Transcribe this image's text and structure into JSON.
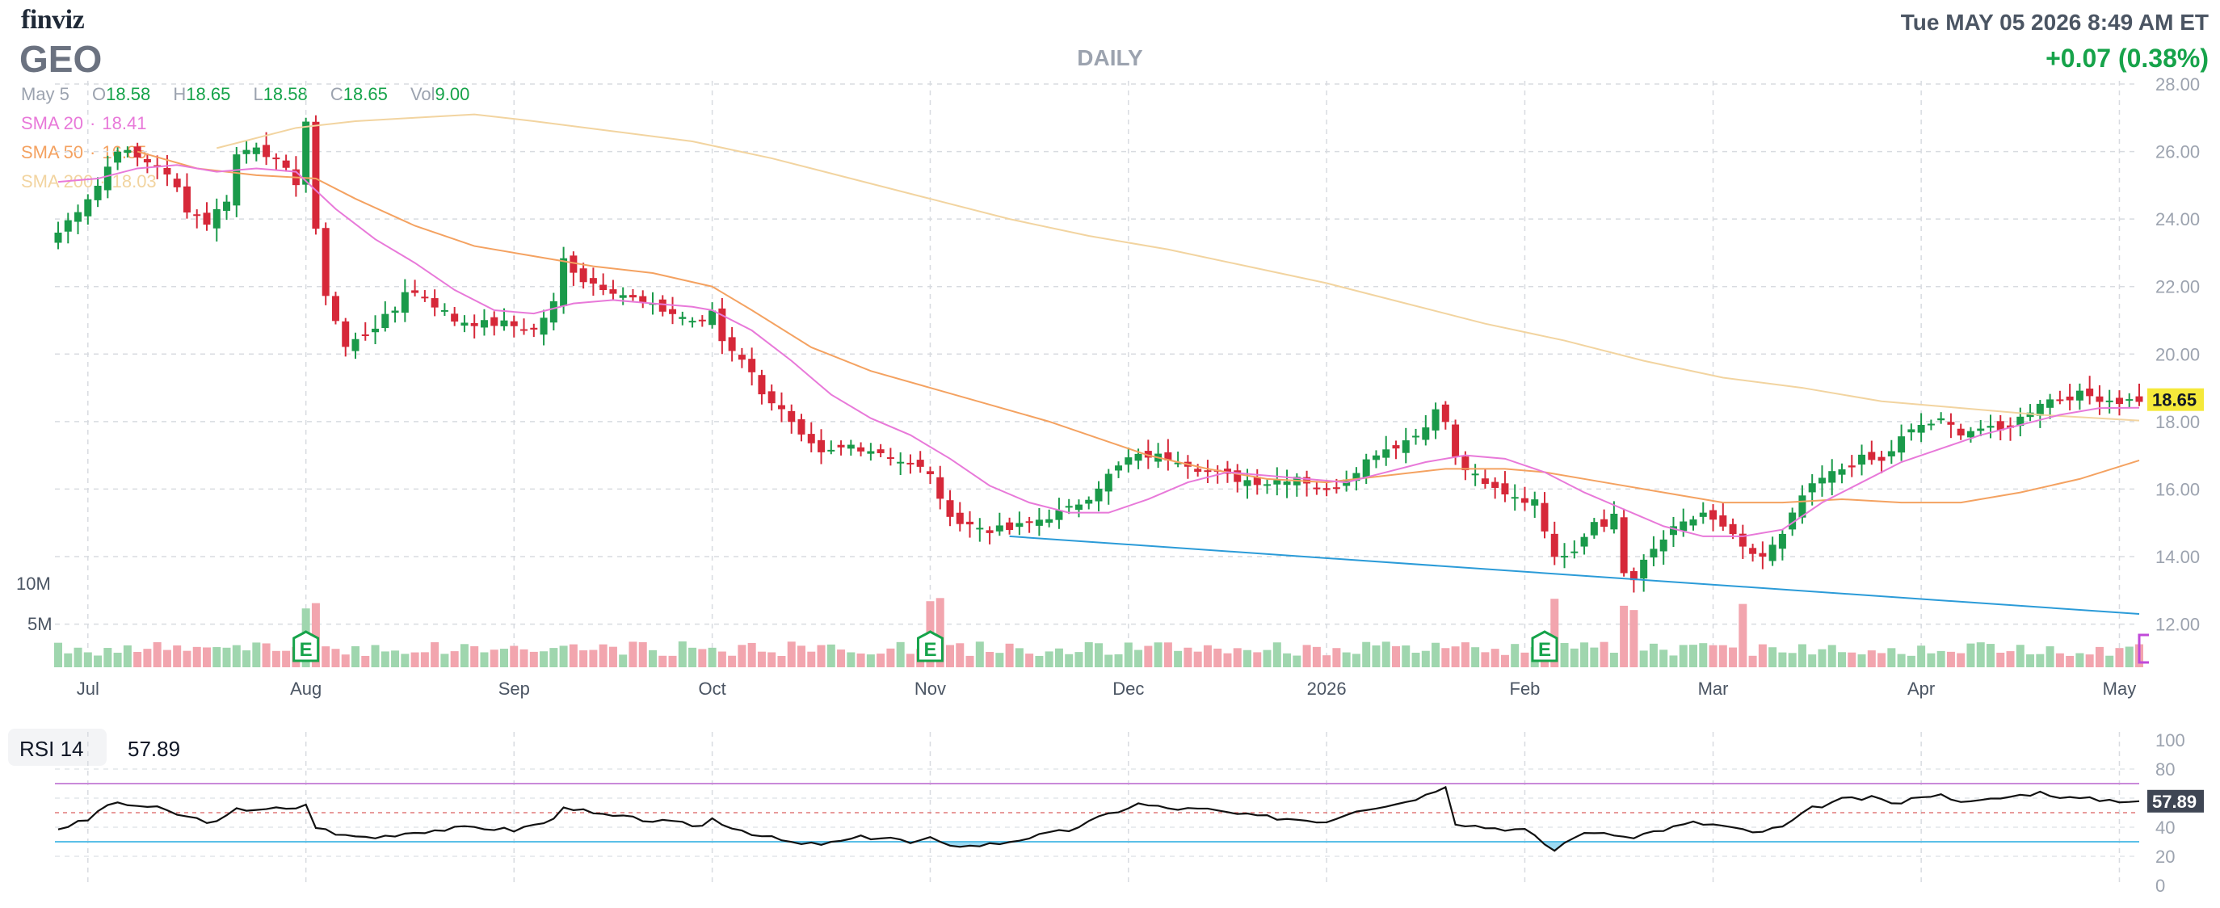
{
  "header": {
    "logo": "finviz",
    "ticker": "GEO",
    "timeframe": "DAILY",
    "datetime": "Tue MAY 05 2026 8:49 AM ET",
    "change": "+0.07 (0.38%)"
  },
  "ohlc": {
    "date": "May 5",
    "open_label": "O",
    "open": "18.58",
    "high_label": "H",
    "high": "18.65",
    "low_label": "L",
    "low": "18.58",
    "close_label": "C",
    "close": "18.65",
    "vol_label": "Vol",
    "vol": "9.00"
  },
  "indicators": {
    "sma20_label": "SMA 20",
    "sma20_value": "18.41",
    "sma50_label": "SMA 50",
    "sma50_value": "16.85",
    "sma200_label": "SMA 200",
    "sma200_value": "18.03"
  },
  "rsi": {
    "label": "RSI 14",
    "value": "57.89"
  },
  "colors": {
    "up": "#1a9a4a",
    "down": "#d62839",
    "up_volume": "#9fd6ae",
    "down_volume": "#f2a5ae",
    "sma20": "#e879d9",
    "sma50": "#f4a261",
    "sma200": "#f2d4a0",
    "trendline": "#2b9bd8",
    "rsi_line": "#111111",
    "rsi_overbought": "#c98ad9",
    "rsi_oversold": "#5bc0e8"
  },
  "chart_data": [
    {
      "type": "candlestick",
      "ylim": [
        11.2,
        28.0
      ],
      "y_ticks": [
        "28.00",
        "26.00",
        "24.00",
        "22.00",
        "20.00",
        "18.00",
        "16.00",
        "14.00",
        "12.00"
      ],
      "last_price_label": "18.65",
      "x_ticks": [
        {
          "label": "Jul",
          "index": 3
        },
        {
          "label": "Aug",
          "index": 25
        },
        {
          "label": "Sep",
          "index": 46
        },
        {
          "label": "Oct",
          "index": 66
        },
        {
          "label": "Nov",
          "index": 88
        },
        {
          "label": "Dec",
          "index": 108
        },
        {
          "label": "2026",
          "index": 128
        },
        {
          "label": "Feb",
          "index": 148
        },
        {
          "label": "Mar",
          "index": 167
        },
        {
          "label": "Apr",
          "index": 188
        },
        {
          "label": "May",
          "index": 208
        }
      ],
      "volume_ticks": [
        "10M",
        "5M"
      ],
      "earnings_markers": [
        {
          "label": "E",
          "index": 25
        },
        {
          "label": "E",
          "index": 88
        },
        {
          "label": "E",
          "index": 150
        }
      ],
      "keypoints": [
        [
          0,
          23.6
        ],
        [
          2,
          24.3
        ],
        [
          4,
          25.0
        ],
        [
          6,
          26.1
        ],
        [
          8,
          25.8
        ],
        [
          10,
          25.6
        ],
        [
          12,
          24.9
        ],
        [
          13,
          24.3
        ],
        [
          15,
          23.9
        ],
        [
          17,
          24.6
        ],
        [
          18,
          25.9
        ],
        [
          20,
          26.2
        ],
        [
          22,
          25.7
        ],
        [
          24,
          25.1
        ],
        [
          25,
          26.9
        ],
        [
          26,
          23.6
        ],
        [
          27,
          21.8
        ],
        [
          29,
          20.2
        ],
        [
          31,
          20.6
        ],
        [
          34,
          21.3
        ],
        [
          35,
          21.9
        ],
        [
          37,
          21.7
        ],
        [
          40,
          21.0
        ],
        [
          43,
          20.9
        ],
        [
          45,
          20.9
        ],
        [
          48,
          20.7
        ],
        [
          50,
          21.5
        ],
        [
          51,
          22.8
        ],
        [
          53,
          22.2
        ],
        [
          56,
          21.9
        ],
        [
          59,
          21.5
        ],
        [
          61,
          21.3
        ],
        [
          63,
          21.1
        ],
        [
          65,
          20.9
        ],
        [
          66,
          21.3
        ],
        [
          67,
          20.4
        ],
        [
          69,
          19.9
        ],
        [
          71,
          18.9
        ],
        [
          73,
          18.3
        ],
        [
          75,
          17.5
        ],
        [
          77,
          17.0
        ],
        [
          80,
          17.3
        ],
        [
          83,
          17.1
        ],
        [
          86,
          16.7
        ],
        [
          88,
          16.5
        ],
        [
          89,
          15.6
        ],
        [
          91,
          15.0
        ],
        [
          94,
          14.8
        ],
        [
          96,
          14.8
        ],
        [
          98,
          15.0
        ],
        [
          100,
          15.2
        ],
        [
          102,
          15.4
        ],
        [
          104,
          15.8
        ],
        [
          106,
          16.4
        ],
        [
          108,
          16.9
        ],
        [
          110,
          17.0
        ],
        [
          113,
          16.9
        ],
        [
          116,
          16.5
        ],
        [
          119,
          16.3
        ],
        [
          122,
          16.2
        ],
        [
          125,
          16.4
        ],
        [
          128,
          15.9
        ],
        [
          131,
          16.6
        ],
        [
          133,
          17.1
        ],
        [
          135,
          17.3
        ],
        [
          137,
          17.6
        ],
        [
          139,
          18.3
        ],
        [
          140,
          18.0
        ],
        [
          141,
          16.9
        ],
        [
          142,
          16.6
        ],
        [
          144,
          16.1
        ],
        [
          147,
          15.8
        ],
        [
          149,
          15.6
        ],
        [
          151,
          14.1
        ],
        [
          152,
          14.1
        ],
        [
          153,
          14.2
        ],
        [
          154,
          14.7
        ],
        [
          155,
          15.0
        ],
        [
          156,
          14.9
        ],
        [
          157,
          15.3
        ],
        [
          158,
          13.5
        ],
        [
          159,
          13.2
        ],
        [
          160,
          13.9
        ],
        [
          162,
          14.6
        ],
        [
          164,
          15.0
        ],
        [
          166,
          15.2
        ],
        [
          168,
          14.9
        ],
        [
          170,
          14.2
        ],
        [
          172,
          14.0
        ],
        [
          174,
          14.6
        ],
        [
          176,
          15.8
        ],
        [
          178,
          16.3
        ],
        [
          180,
          16.6
        ],
        [
          182,
          16.9
        ],
        [
          184,
          16.8
        ],
        [
          186,
          17.5
        ],
        [
          188,
          17.9
        ],
        [
          190,
          18.0
        ],
        [
          192,
          17.7
        ],
        [
          194,
          17.8
        ],
        [
          196,
          17.7
        ],
        [
          198,
          18.1
        ],
        [
          200,
          18.6
        ],
        [
          202,
          18.7
        ],
        [
          204,
          18.8
        ],
        [
          206,
          18.7
        ],
        [
          208,
          18.6
        ],
        [
          210,
          18.65
        ]
      ],
      "sma20_keypoints": [
        [
          0,
          25.1
        ],
        [
          4,
          25.2
        ],
        [
          8,
          25.5
        ],
        [
          12,
          25.6
        ],
        [
          16,
          25.4
        ],
        [
          20,
          25.5
        ],
        [
          24,
          25.4
        ],
        [
          28,
          24.3
        ],
        [
          32,
          23.4
        ],
        [
          36,
          22.7
        ],
        [
          40,
          21.9
        ],
        [
          44,
          21.3
        ],
        [
          48,
          21.2
        ],
        [
          52,
          21.5
        ],
        [
          56,
          21.6
        ],
        [
          60,
          21.5
        ],
        [
          64,
          21.4
        ],
        [
          66,
          21.3
        ],
        [
          70,
          20.7
        ],
        [
          74,
          19.8
        ],
        [
          78,
          18.8
        ],
        [
          82,
          18.1
        ],
        [
          86,
          17.6
        ],
        [
          90,
          16.9
        ],
        [
          94,
          16.1
        ],
        [
          98,
          15.6
        ],
        [
          102,
          15.3
        ],
        [
          106,
          15.3
        ],
        [
          110,
          15.7
        ],
        [
          114,
          16.2
        ],
        [
          118,
          16.5
        ],
        [
          122,
          16.4
        ],
        [
          126,
          16.3
        ],
        [
          130,
          16.2
        ],
        [
          134,
          16.5
        ],
        [
          138,
          16.8
        ],
        [
          142,
          17.0
        ],
        [
          146,
          16.9
        ],
        [
          150,
          16.5
        ],
        [
          154,
          15.9
        ],
        [
          158,
          15.4
        ],
        [
          162,
          14.9
        ],
        [
          166,
          14.6
        ],
        [
          170,
          14.6
        ],
        [
          174,
          14.8
        ],
        [
          178,
          15.6
        ],
        [
          182,
          16.2
        ],
        [
          186,
          16.8
        ],
        [
          190,
          17.2
        ],
        [
          194,
          17.6
        ],
        [
          198,
          17.9
        ],
        [
          202,
          18.2
        ],
        [
          206,
          18.4
        ],
        [
          210,
          18.41
        ]
      ],
      "sma50_keypoints": [
        [
          8,
          26.0
        ],
        [
          14,
          25.5
        ],
        [
          20,
          25.3
        ],
        [
          26,
          25.2
        ],
        [
          30,
          24.6
        ],
        [
          36,
          23.8
        ],
        [
          42,
          23.2
        ],
        [
          48,
          22.9
        ],
        [
          54,
          22.6
        ],
        [
          60,
          22.4
        ],
        [
          66,
          22.0
        ],
        [
          70,
          21.3
        ],
        [
          76,
          20.2
        ],
        [
          82,
          19.5
        ],
        [
          88,
          19.0
        ],
        [
          94,
          18.5
        ],
        [
          100,
          18.0
        ],
        [
          106,
          17.4
        ],
        [
          110,
          17.0
        ],
        [
          116,
          16.6
        ],
        [
          122,
          16.3
        ],
        [
          128,
          16.2
        ],
        [
          134,
          16.4
        ],
        [
          140,
          16.6
        ],
        [
          146,
          16.6
        ],
        [
          150,
          16.5
        ],
        [
          156,
          16.2
        ],
        [
          162,
          15.9
        ],
        [
          168,
          15.6
        ],
        [
          174,
          15.6
        ],
        [
          180,
          15.7
        ],
        [
          186,
          15.6
        ],
        [
          192,
          15.6
        ],
        [
          198,
          15.9
        ],
        [
          204,
          16.3
        ],
        [
          210,
          16.85
        ]
      ],
      "sma200_keypoints": [
        [
          16,
          26.1
        ],
        [
          24,
          26.7
        ],
        [
          30,
          26.9
        ],
        [
          36,
          27.0
        ],
        [
          42,
          27.1
        ],
        [
          48,
          26.9
        ],
        [
          56,
          26.6
        ],
        [
          64,
          26.3
        ],
        [
          72,
          25.8
        ],
        [
          80,
          25.2
        ],
        [
          88,
          24.6
        ],
        [
          96,
          24.0
        ],
        [
          104,
          23.5
        ],
        [
          112,
          23.1
        ],
        [
          120,
          22.6
        ],
        [
          128,
          22.1
        ],
        [
          136,
          21.5
        ],
        [
          144,
          20.9
        ],
        [
          152,
          20.4
        ],
        [
          160,
          19.8
        ],
        [
          168,
          19.3
        ],
        [
          176,
          19.0
        ],
        [
          184,
          18.6
        ],
        [
          192,
          18.4
        ],
        [
          200,
          18.2
        ],
        [
          210,
          18.03
        ]
      ],
      "trendline": [
        [
          96,
          14.6
        ],
        [
          210,
          12.3
        ]
      ]
    },
    {
      "type": "line",
      "title": "RSI 14",
      "ylim": [
        0,
        100
      ],
      "y_ticks": [
        "100",
        "80",
        "60",
        "40",
        "20",
        "0"
      ],
      "overbought": 70,
      "oversold": 30,
      "midline": 50,
      "last_value_label": "57.89",
      "keypoints": [
        [
          0,
          39
        ],
        [
          3,
          45
        ],
        [
          5,
          56
        ],
        [
          8,
          55
        ],
        [
          10,
          53
        ],
        [
          13,
          47
        ],
        [
          16,
          43
        ],
        [
          18,
          52
        ],
        [
          21,
          53
        ],
        [
          24,
          52
        ],
        [
          25,
          56
        ],
        [
          26,
          40
        ],
        [
          29,
          34
        ],
        [
          32,
          33
        ],
        [
          35,
          36
        ],
        [
          38,
          38
        ],
        [
          42,
          40
        ],
        [
          46,
          38
        ],
        [
          50,
          45
        ],
        [
          51,
          55
        ],
        [
          54,
          49
        ],
        [
          58,
          46
        ],
        [
          62,
          43
        ],
        [
          65,
          41
        ],
        [
          66,
          46
        ],
        [
          68,
          40
        ],
        [
          71,
          34
        ],
        [
          73,
          31
        ],
        [
          75,
          28
        ],
        [
          78,
          29
        ],
        [
          81,
          33
        ],
        [
          84,
          33
        ],
        [
          86,
          29
        ],
        [
          88,
          32
        ],
        [
          89,
          29
        ],
        [
          92,
          27
        ],
        [
          95,
          29
        ],
        [
          98,
          33
        ],
        [
          102,
          38
        ],
        [
          106,
          49
        ],
        [
          109,
          56
        ],
        [
          112,
          53
        ],
        [
          116,
          52
        ],
        [
          120,
          48
        ],
        [
          124,
          46
        ],
        [
          128,
          44
        ],
        [
          131,
          52
        ],
        [
          135,
          56
        ],
        [
          138,
          62
        ],
        [
          140,
          69
        ],
        [
          141,
          43
        ],
        [
          144,
          40
        ],
        [
          148,
          38
        ],
        [
          151,
          24
        ],
        [
          153,
          34
        ],
        [
          156,
          37
        ],
        [
          158,
          32
        ],
        [
          161,
          37
        ],
        [
          165,
          43
        ],
        [
          168,
          41
        ],
        [
          171,
          36
        ],
        [
          174,
          40
        ],
        [
          177,
          53
        ],
        [
          180,
          59
        ],
        [
          183,
          60
        ],
        [
          186,
          56
        ],
        [
          188,
          62
        ],
        [
          190,
          62
        ],
        [
          193,
          57
        ],
        [
          196,
          60
        ],
        [
          200,
          64
        ],
        [
          203,
          60
        ],
        [
          206,
          59
        ],
        [
          210,
          57.89
        ]
      ]
    }
  ]
}
